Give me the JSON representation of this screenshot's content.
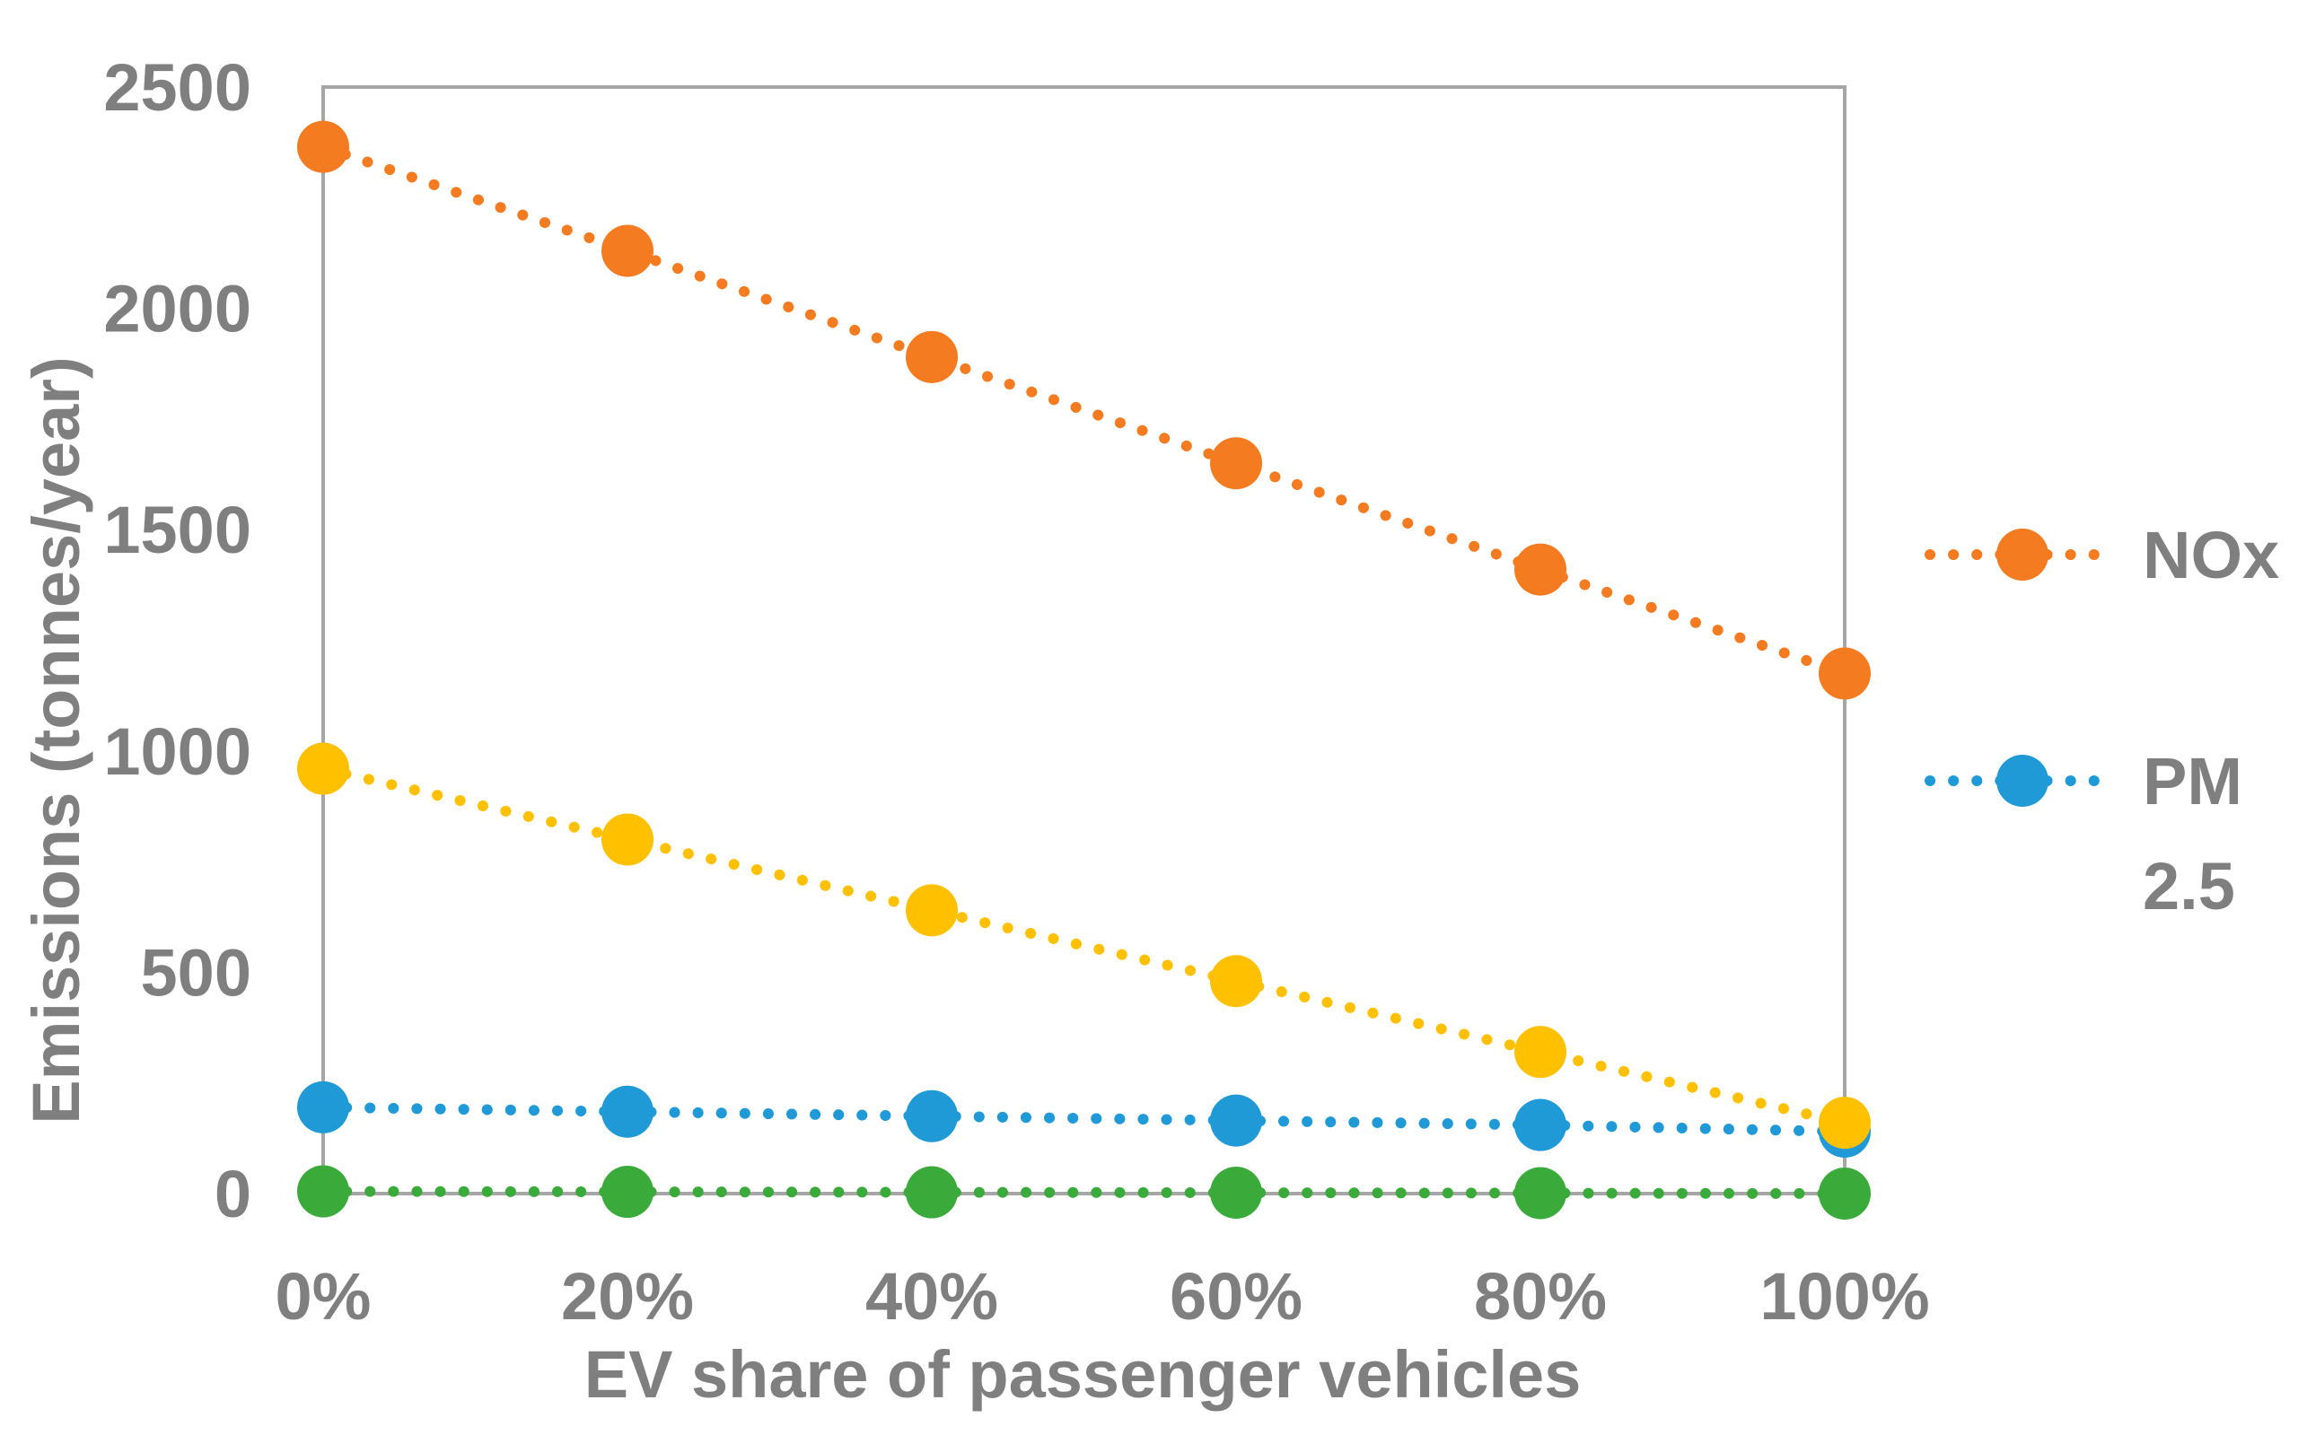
{
  "chart_data": {
    "type": "line",
    "title": "",
    "xlabel": "EV share of passenger vehicles",
    "ylabel": "Emissions (tonnes/year)",
    "categories": [
      "0%",
      "20%",
      "40%",
      "60%",
      "80%",
      "100%"
    ],
    "ylim": [
      0,
      2500
    ],
    "yticks": [
      "0",
      "500",
      "1000",
      "1500",
      "2000",
      "2500"
    ],
    "grid": false,
    "legend_position": "right",
    "series": [
      {
        "name": "NOx",
        "color": "#f47b20",
        "line_style": "dotted",
        "marker": "circle",
        "in_legend": true,
        "values": [
          2365,
          2130,
          1890,
          1650,
          1410,
          1175
        ]
      },
      {
        "name": "PM 2.5",
        "legend_lines": [
          "PM",
          "2.5"
        ],
        "color": "#1f9ad6",
        "line_style": "dotted",
        "marker": "circle",
        "in_legend": true,
        "values": [
          195,
          185,
          175,
          165,
          155,
          140
        ]
      },
      {
        "name": "",
        "color": "#ffc000",
        "line_style": "dotted",
        "marker": "circle",
        "in_legend": false,
        "values": [
          960,
          800,
          640,
          480,
          320,
          160
        ]
      },
      {
        "name": "",
        "color": "#3aab3a",
        "line_style": "dotted",
        "marker": "circle",
        "in_legend": false,
        "values": [
          5,
          4,
          3,
          2,
          1,
          0
        ]
      }
    ]
  }
}
